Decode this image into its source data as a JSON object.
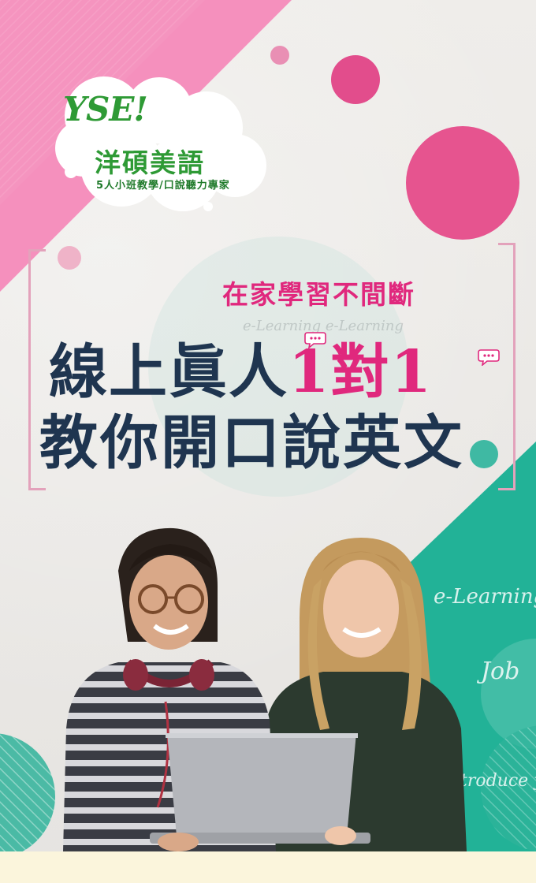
{
  "brand": {
    "logo_mark": "YSE!",
    "name": "洋碩美語",
    "tagline": "5人小班教學/口說聽力專家"
  },
  "hero": {
    "subtitle": "在家學習不間斷",
    "headline_line1_prefix": "線上眞人",
    "headline_line1_accent": "1對1",
    "headline_line2": "教你開口說英文"
  },
  "background_words": {
    "faint": "e-Learning e-Learning",
    "word1": "e-Learning",
    "word2": "Job",
    "word3": "troduce y"
  },
  "colors": {
    "pink": "#e0287d",
    "navy": "#1f3550",
    "teal": "#2fb39a",
    "green": "#2e9a35"
  }
}
